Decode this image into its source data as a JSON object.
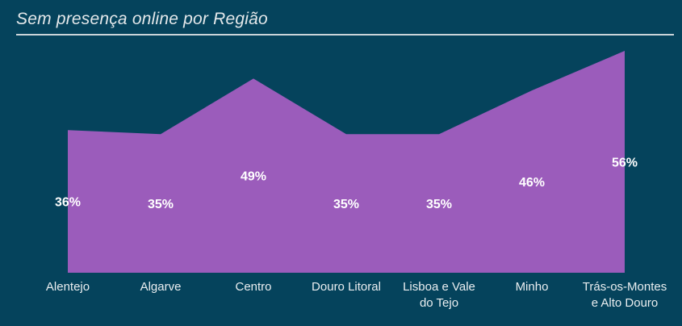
{
  "header": {
    "title": "Sem presença online por Região"
  },
  "colors": {
    "background": "#05435C",
    "area_fill": "#9B5CBB",
    "title_text": "#E4E8EA",
    "axis_text": "#EAEEF0",
    "value_text": "#FFFFFF",
    "rule": "#DCE1E4"
  },
  "chart_data": {
    "type": "area",
    "title": "Sem presença online por Região",
    "categories": [
      "Alentejo",
      "Algarve",
      "Centro",
      "Douro Litoral",
      "Lisboa e Vale do Tejo",
      "Minho",
      "Trás-os-Montes e Alto Douro"
    ],
    "category_lines": [
      [
        "Alentejo"
      ],
      [
        "Algarve"
      ],
      [
        "Centro"
      ],
      [
        "Douro Litoral"
      ],
      [
        "Lisboa e Vale",
        "do Tejo"
      ],
      [
        "Minho"
      ],
      [
        "Trás-os-Montes",
        "e Alto Douro"
      ]
    ],
    "values": [
      36,
      35,
      49,
      35,
      35,
      46,
      56
    ],
    "unit": "%",
    "value_labels": [
      "36%",
      "35%",
      "49%",
      "35%",
      "35%",
      "46%",
      "56%"
    ],
    "xlabel": "",
    "ylabel": "",
    "ylim": [
      0,
      56
    ],
    "grid": false,
    "legend": false,
    "value_label_position": "inside-middle"
  }
}
